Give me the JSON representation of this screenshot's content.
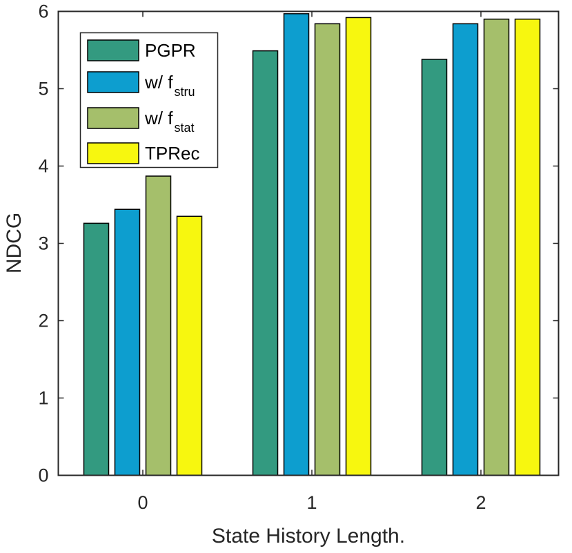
{
  "chart_data": {
    "type": "bar",
    "title": "",
    "xlabel": "State History Length.",
    "ylabel": "NDCG",
    "categories": [
      "0",
      "1",
      "2"
    ],
    "ylim": [
      0,
      6
    ],
    "yticks": [
      "0",
      "1",
      "2",
      "3",
      "4",
      "5",
      "6"
    ],
    "grid": false,
    "legend_position": "top-left",
    "series": [
      {
        "name": "PGPR",
        "legend_main": "PGPR",
        "legend_sub": "",
        "color": "#339a80",
        "values": [
          3.26,
          5.49,
          5.38
        ]
      },
      {
        "name": "w/ f_stru",
        "legend_main": "w/ f",
        "legend_sub": "stru",
        "color": "#0d9ecf",
        "values": [
          3.44,
          5.97,
          5.84
        ]
      },
      {
        "name": "w/ f_stat",
        "legend_main": "w/ f",
        "legend_sub": "stat",
        "color": "#a5bf6b",
        "values": [
          3.87,
          5.84,
          5.9
        ]
      },
      {
        "name": "TPRec",
        "legend_main": "TPRec",
        "legend_sub": "",
        "color": "#f7f70f",
        "values": [
          3.35,
          5.92,
          5.9
        ]
      }
    ]
  }
}
